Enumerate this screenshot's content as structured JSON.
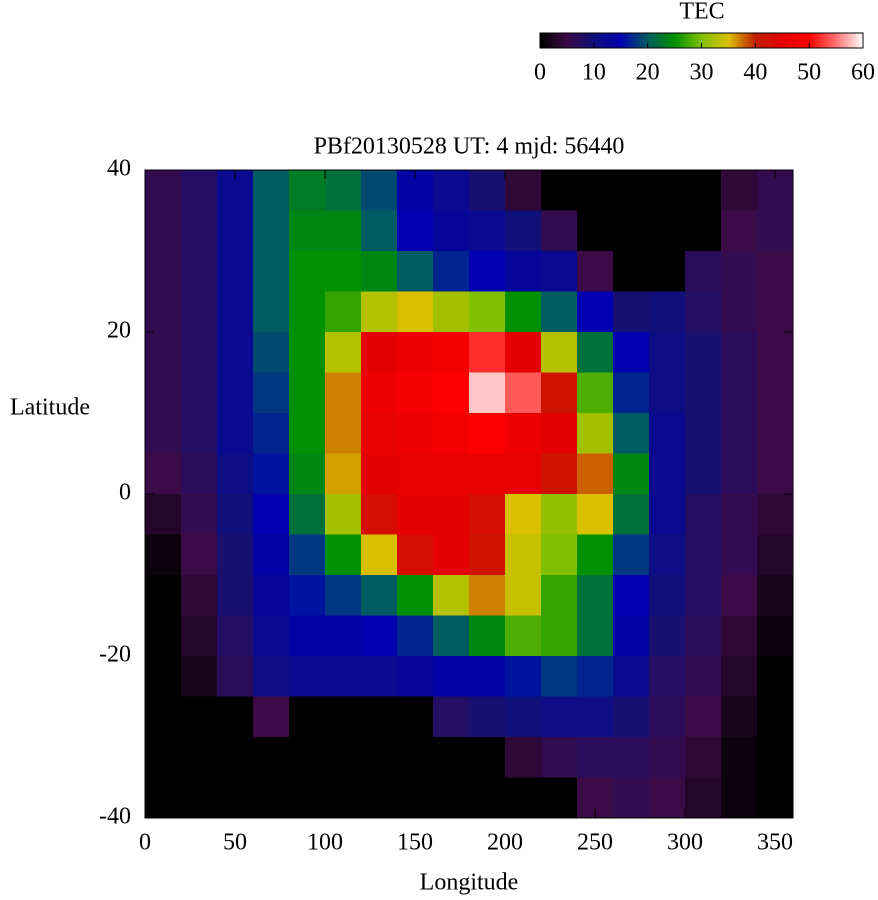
{
  "chart_data": {
    "type": "heatmap",
    "title": "PBf20130528  UT: 4  mjd: 56440",
    "x_label": "Longitude",
    "y_label": "Latitude",
    "colorbar_label": "TEC",
    "xlim": [
      0,
      360
    ],
    "xticks": [
      0,
      50,
      100,
      150,
      200,
      250,
      300,
      350
    ],
    "ylim": [
      -40,
      40
    ],
    "yticks": [
      -40,
      -20,
      0,
      20,
      40
    ],
    "zlim": [
      0,
      60
    ],
    "zticks": [
      0,
      10,
      20,
      30,
      40,
      50,
      60
    ],
    "colormap": [
      "#000000",
      "#3c0a46",
      "#10107a",
      "#0000b0",
      "#005c60",
      "#009000",
      "#80c000",
      "#d8c000",
      "#c02000",
      "#e40000",
      "#ff0000",
      "#ff7070",
      "#ffffff"
    ],
    "x": [
      10,
      30,
      50,
      70,
      90,
      110,
      130,
      150,
      170,
      190,
      210,
      230,
      250,
      270,
      290,
      310,
      330,
      350
    ],
    "y": [
      37.5,
      32.5,
      27.5,
      22.5,
      17.5,
      12.5,
      7.5,
      2.5,
      -2.5,
      -7.5,
      -12.5,
      -17.5,
      -22.5,
      -27.5,
      -32.5,
      -37.5
    ],
    "z": [
      [
        6,
        8,
        12,
        20,
        23,
        22,
        19,
        14,
        12,
        9,
        4,
        0,
        0,
        0,
        0,
        0,
        4,
        6
      ],
      [
        6,
        8,
        12,
        20,
        24,
        24,
        20,
        15,
        13,
        12,
        10,
        6,
        0,
        0,
        0,
        0,
        5,
        6
      ],
      [
        6,
        8,
        12,
        20,
        25,
        25,
        24,
        20,
        17,
        15,
        13,
        12,
        5,
        0,
        0,
        7,
        6,
        5
      ],
      [
        6,
        8,
        12,
        20,
        25,
        27,
        33,
        35,
        32,
        30,
        25,
        20,
        15,
        9,
        10,
        8,
        6,
        5
      ],
      [
        6,
        8,
        12,
        19,
        25,
        33,
        45,
        47,
        48,
        52,
        45,
        33,
        22,
        15,
        11,
        9,
        7,
        5
      ],
      [
        6,
        8,
        12,
        18,
        25,
        37,
        47,
        48,
        50,
        58,
        54,
        42,
        28,
        17,
        11,
        9,
        7,
        5
      ],
      [
        6,
        8,
        12,
        17,
        25,
        37,
        46,
        47,
        48,
        50,
        47,
        45,
        32,
        20,
        12,
        9,
        7,
        5
      ],
      [
        5,
        7,
        11,
        16,
        24,
        36,
        45,
        46,
        46,
        46,
        46,
        42,
        38,
        24,
        12,
        9,
        7,
        5
      ],
      [
        3,
        6,
        10,
        15,
        22,
        32,
        43,
        45,
        45,
        43,
        35,
        31,
        35,
        22,
        12,
        8,
        6,
        4
      ],
      [
        1,
        5,
        9,
        14,
        18,
        25,
        35,
        43,
        45,
        42,
        34,
        30,
        25,
        18,
        11,
        8,
        6,
        3
      ],
      [
        0,
        4,
        9,
        13,
        16,
        18,
        20,
        25,
        33,
        37,
        34,
        27,
        22,
        15,
        10,
        8,
        5,
        2
      ],
      [
        0,
        3,
        8,
        12,
        14,
        14,
        15,
        17,
        20,
        24,
        28,
        27,
        22,
        14,
        9,
        7,
        4,
        1
      ],
      [
        0,
        2,
        7,
        11,
        12,
        12,
        12,
        13,
        14,
        14,
        16,
        18,
        17,
        12,
        8,
        6,
        3,
        0
      ],
      [
        0,
        0,
        0,
        5,
        0,
        0,
        0,
        0,
        8,
        9,
        10,
        11,
        11,
        9,
        7,
        5,
        2,
        0
      ],
      [
        0,
        0,
        0,
        0,
        0,
        0,
        0,
        0,
        0,
        0,
        4,
        6,
        7,
        7,
        6,
        4,
        1,
        0
      ],
      [
        0,
        0,
        0,
        0,
        0,
        0,
        0,
        0,
        0,
        0,
        0,
        0,
        5,
        6,
        5,
        3,
        1,
        0
      ]
    ]
  }
}
